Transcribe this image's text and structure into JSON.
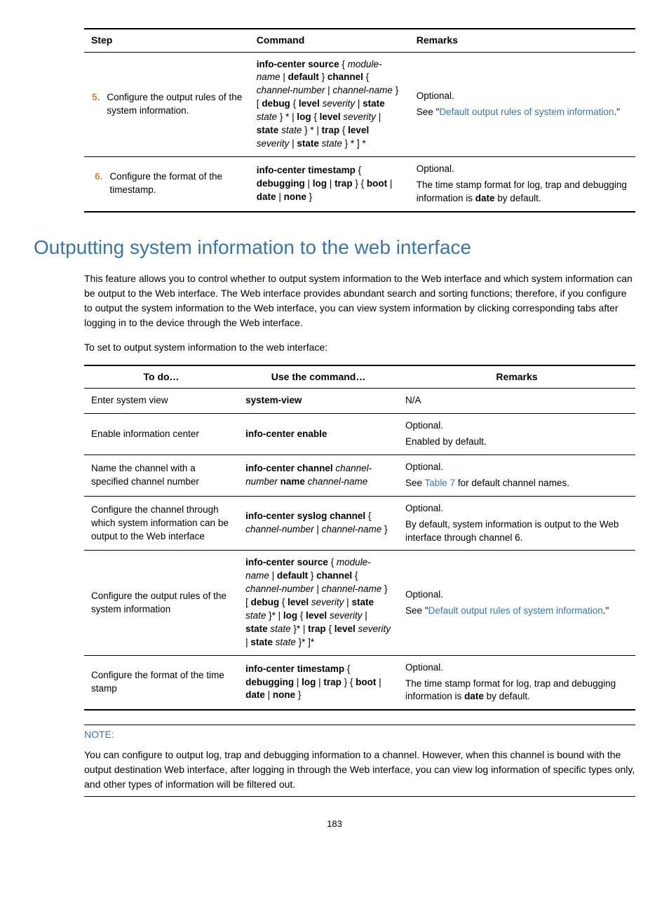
{
  "colors": {
    "link": "#3876a8",
    "accent": "#c7863f"
  },
  "table1": {
    "headers": [
      "Step",
      "Command",
      "Remarks"
    ],
    "rows": [
      {
        "num": "5.",
        "step": "Configure the output rules of the system information.",
        "cmd_segments": [
          {
            "t": "info-center source",
            "b": 1
          },
          {
            "t": " { ",
            "b": 0
          },
          {
            "t": "module-name",
            "i": 1
          },
          {
            "t": " | ",
            "b": 0
          },
          {
            "t": "default",
            "b": 1
          },
          {
            "t": " } ",
            "b": 0
          },
          {
            "t": "channel",
            "b": 1
          },
          {
            "t": " { ",
            "b": 0
          },
          {
            "t": "channel-number",
            "i": 1
          },
          {
            "t": " | ",
            "b": 0
          },
          {
            "t": "channel-name",
            "i": 1
          },
          {
            "t": " } [ ",
            "b": 0
          },
          {
            "t": "debug",
            "b": 1
          },
          {
            "t": " { ",
            "b": 0
          },
          {
            "t": "level",
            "b": 1
          },
          {
            "t": " ",
            "b": 0
          },
          {
            "t": "severity",
            "i": 1
          },
          {
            "t": " | ",
            "b": 0
          },
          {
            "t": "state",
            "b": 1
          },
          {
            "t": " ",
            "b": 0
          },
          {
            "t": "state",
            "i": 1
          },
          {
            "t": " } * | ",
            "b": 0
          },
          {
            "t": "log",
            "b": 1
          },
          {
            "t": " { ",
            "b": 0
          },
          {
            "t": "level",
            "b": 1
          },
          {
            "t": " ",
            "b": 0
          },
          {
            "t": "severity",
            "i": 1
          },
          {
            "t": " | ",
            "b": 0
          },
          {
            "t": "state",
            "b": 1
          },
          {
            "t": " ",
            "b": 0
          },
          {
            "t": "state",
            "i": 1
          },
          {
            "t": " } * | ",
            "b": 0
          },
          {
            "t": "trap",
            "b": 1
          },
          {
            "t": " { ",
            "b": 0
          },
          {
            "t": "level",
            "b": 1
          },
          {
            "t": " ",
            "b": 0
          },
          {
            "t": "severity",
            "i": 1
          },
          {
            "t": " | ",
            "b": 0
          },
          {
            "t": "state",
            "b": 1
          },
          {
            "t": " ",
            "b": 0
          },
          {
            "t": "state",
            "i": 1
          },
          {
            "t": " } * ] *",
            "b": 0
          }
        ],
        "rem_pre": "Optional.",
        "rem_text1": "See \"",
        "rem_link": "Default output rules of system information",
        "rem_text2": ".\""
      },
      {
        "num": "6.",
        "step": "Configure the format of the timestamp.",
        "cmd_segments": [
          {
            "t": "info-center timestamp",
            "b": 1
          },
          {
            "t": " { ",
            "b": 0
          },
          {
            "t": "debugging",
            "b": 1
          },
          {
            "t": " | ",
            "b": 0
          },
          {
            "t": "log",
            "b": 1
          },
          {
            "t": " | ",
            "b": 0
          },
          {
            "t": "trap",
            "b": 1
          },
          {
            "t": " } { ",
            "b": 0
          },
          {
            "t": "boot",
            "b": 1
          },
          {
            "t": " | ",
            "b": 0
          },
          {
            "t": "date",
            "b": 1
          },
          {
            "t": " | ",
            "b": 0
          },
          {
            "t": "none",
            "b": 1
          },
          {
            "t": " }",
            "b": 0
          }
        ],
        "rem_pre": "Optional.",
        "rem_text1": "The time stamp format for log, trap and debugging information is ",
        "rem_bold": "date",
        "rem_text2": " by default."
      }
    ]
  },
  "heading": "Outputting system information to the web interface",
  "body_para": "This feature allows you to control whether to output system information to the Web interface and which system information can be output to the Web interface. The Web interface provides abundant search and sorting functions; therefore, if you configure to output the system information to the Web interface, you can view system information by clicking corresponding tabs after logging in to the device through the Web interface.",
  "lead_in": "To set to output system information to the web interface:",
  "table2": {
    "headers": [
      "To do…",
      "Use the command…",
      "Remarks"
    ],
    "rows": [
      {
        "todo": "Enter system view",
        "cmd_segments": [
          {
            "t": "system-view",
            "b": 1
          }
        ],
        "rem_plain": "N/A"
      },
      {
        "todo": "Enable information center",
        "cmd_segments": [
          {
            "t": "info-center enable",
            "b": 1
          }
        ],
        "rem_pre": "Optional.",
        "rem_text1": "Enabled by default."
      },
      {
        "todo": "Name the channel with a specified channel number",
        "cmd_segments": [
          {
            "t": "info-center channel",
            "b": 1
          },
          {
            "t": " ",
            "b": 0
          },
          {
            "t": "channel-number",
            "i": 1
          },
          {
            "t": " ",
            "b": 0
          },
          {
            "t": "name",
            "b": 1
          },
          {
            "t": " ",
            "b": 0
          },
          {
            "t": "channel-name",
            "i": 1
          }
        ],
        "rem_pre": "Optional.",
        "rem_text1": "See ",
        "rem_link": "Table 7",
        "rem_text2": " for default channel names."
      },
      {
        "todo": "Configure the channel through which system information can be output to the Web interface",
        "cmd_segments": [
          {
            "t": "info-center syslog channel",
            "b": 1
          },
          {
            "t": " { ",
            "b": 0
          },
          {
            "t": "channel-number",
            "i": 1
          },
          {
            "t": " | ",
            "b": 0
          },
          {
            "t": "channel-name",
            "i": 1
          },
          {
            "t": " }",
            "b": 0
          }
        ],
        "rem_pre": "Optional.",
        "rem_text1": "By default, system information is output to the Web interface through channel 6."
      },
      {
        "todo": "Configure the output rules of the system information",
        "cmd_segments": [
          {
            "t": "info-center source",
            "b": 1
          },
          {
            "t": " { ",
            "b": 0
          },
          {
            "t": "module-name",
            "i": 1
          },
          {
            "t": " | ",
            "b": 0
          },
          {
            "t": "default",
            "b": 1
          },
          {
            "t": " } ",
            "b": 0
          },
          {
            "t": "channel",
            "b": 1
          },
          {
            "t": " { ",
            "b": 0
          },
          {
            "t": "channel-number",
            "i": 1
          },
          {
            "t": " | ",
            "b": 0
          },
          {
            "t": "channel-name",
            "i": 1
          },
          {
            "t": " } [ ",
            "b": 0
          },
          {
            "t": "debug",
            "b": 1
          },
          {
            "t": " { ",
            "b": 0
          },
          {
            "t": "level",
            "b": 1
          },
          {
            "t": " ",
            "b": 0
          },
          {
            "t": "severity",
            "i": 1
          },
          {
            "t": " | ",
            "b": 0
          },
          {
            "t": "state",
            "b": 1
          },
          {
            "t": " ",
            "b": 0
          },
          {
            "t": "state",
            "i": 1
          },
          {
            "t": " }* | ",
            "b": 0
          },
          {
            "t": "log",
            "b": 1
          },
          {
            "t": " { ",
            "b": 0
          },
          {
            "t": "level",
            "b": 1
          },
          {
            "t": " ",
            "b": 0
          },
          {
            "t": "severity",
            "i": 1
          },
          {
            "t": " | ",
            "b": 0
          },
          {
            "t": "state",
            "b": 1
          },
          {
            "t": " ",
            "b": 0
          },
          {
            "t": "state",
            "i": 1
          },
          {
            "t": " }* | ",
            "b": 0
          },
          {
            "t": "trap",
            "b": 1
          },
          {
            "t": " { ",
            "b": 0
          },
          {
            "t": "level",
            "b": 1
          },
          {
            "t": " ",
            "b": 0
          },
          {
            "t": "severity",
            "i": 1
          },
          {
            "t": " | ",
            "b": 0
          },
          {
            "t": "state",
            "b": 1
          },
          {
            "t": " ",
            "b": 0
          },
          {
            "t": "state",
            "i": 1
          },
          {
            "t": " }* ]*",
            "b": 0
          }
        ],
        "rem_pre": "Optional.",
        "rem_text1": "See \"",
        "rem_link": "Default output rules of system information",
        "rem_text2": ".\""
      },
      {
        "todo": "Configure the format of the time stamp",
        "cmd_segments": [
          {
            "t": "info-center timestamp",
            "b": 1
          },
          {
            "t": " { ",
            "b": 0
          },
          {
            "t": "debugging",
            "b": 1
          },
          {
            "t": " | ",
            "b": 0
          },
          {
            "t": "log",
            "b": 1
          },
          {
            "t": " | ",
            "b": 0
          },
          {
            "t": "trap",
            "b": 1
          },
          {
            "t": " } { ",
            "b": 0
          },
          {
            "t": "boot",
            "b": 1
          },
          {
            "t": " | ",
            "b": 0
          },
          {
            "t": "date",
            "b": 1
          },
          {
            "t": " | ",
            "b": 0
          },
          {
            "t": "none",
            "b": 1
          },
          {
            "t": " }",
            "b": 0
          }
        ],
        "rem_pre": "Optional.",
        "rem_text1": "The time stamp format for log, trap and debugging information is ",
        "rem_bold": "date",
        "rem_text2": " by default."
      }
    ]
  },
  "note_title": "NOTE:",
  "note_body": "You can configure to output log, trap and debugging information to a channel. However, when this channel is bound with the output destination Web interface, after logging in through the Web interface, you can view log information of specific types only, and other types of information will be filtered out.",
  "page_number": "183"
}
